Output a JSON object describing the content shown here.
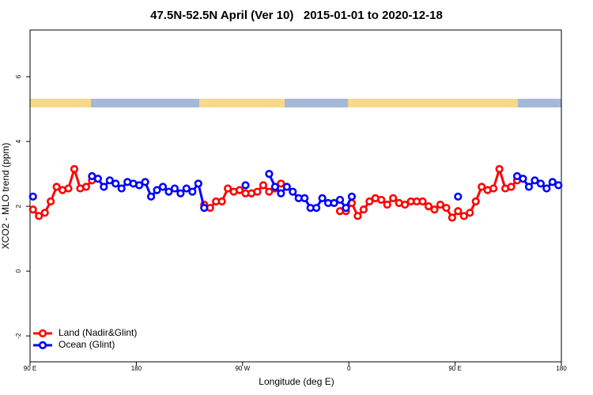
{
  "chart_data": {
    "type": "line",
    "title": "47.5N-52.5N April (Ver 10)   2015-01-01 to 2020-12-18",
    "xlabel": "Longitude (deg E)",
    "ylabel": "XCO2 - MLO trend (ppm)",
    "x": [
      92.5,
      97.5,
      102.5,
      107.5,
      112.5,
      117.5,
      122.5,
      127.5,
      132.5,
      137.5,
      142.5,
      147.5,
      152.5,
      157.5,
      162.5,
      167.5,
      172.5,
      177.5,
      182.5,
      187.5,
      192.5,
      197.5,
      202.5,
      207.5,
      212.5,
      217.5,
      222.5,
      227.5,
      232.5,
      237.5,
      242.5,
      247.5,
      252.5,
      257.5,
      262.5,
      267.5,
      272.5,
      277.5,
      282.5,
      287.5,
      292.5,
      297.5,
      302.5,
      307.5,
      312.5,
      317.5,
      322.5,
      327.5,
      332.5,
      337.5,
      342.5,
      347.5,
      352.5,
      357.5,
      362.5,
      367.5,
      372.5,
      377.5,
      382.5,
      387.5,
      392.5,
      397.5,
      402.5,
      407.5,
      412.5,
      417.5,
      422.5,
      427.5,
      432.5,
      437.5,
      442.5,
      447.5,
      452.5,
      457.5,
      462.5,
      467.5,
      472.5,
      477.5,
      482.5,
      487.5,
      492.5,
      497.5,
      502.5,
      507.5,
      512.5,
      517.5,
      522.5,
      527.5,
      532.5,
      537.5
    ],
    "series": [
      {
        "name": "Land (Nadir&Glint)",
        "color": "#ff0000",
        "values": [
          1.9,
          1.7,
          1.8,
          2.15,
          2.6,
          2.5,
          2.55,
          3.15,
          2.55,
          2.6,
          2.8,
          null,
          null,
          null,
          null,
          null,
          null,
          null,
          null,
          null,
          null,
          null,
          null,
          null,
          null,
          null,
          null,
          null,
          null,
          2.05,
          1.95,
          2.15,
          2.15,
          2.55,
          2.45,
          2.5,
          2.4,
          2.4,
          2.45,
          2.65,
          2.45,
          2.55,
          2.7,
          null,
          null,
          null,
          null,
          null,
          null,
          null,
          null,
          null,
          1.85,
          1.85,
          2.1,
          1.7,
          1.9,
          2.15,
          2.25,
          2.2,
          2.05,
          2.25,
          2.1,
          2.05,
          2.15,
          2.15,
          2.15,
          2.0,
          1.9,
          2.05,
          1.95,
          1.65,
          1.85,
          1.7,
          1.8,
          2.15,
          2.6,
          2.5,
          2.55,
          3.15,
          2.55,
          2.6,
          2.8,
          null,
          null,
          null,
          null,
          null,
          null,
          null
        ]
      },
      {
        "name": "Ocean (Glint)",
        "color": "#0000ff",
        "values": [
          2.3,
          null,
          null,
          null,
          null,
          null,
          null,
          null,
          null,
          null,
          2.93,
          2.85,
          2.6,
          2.8,
          2.7,
          2.55,
          2.75,
          2.7,
          2.65,
          2.75,
          2.3,
          2.5,
          2.6,
          2.45,
          2.55,
          2.4,
          2.55,
          2.45,
          2.7,
          1.95,
          null,
          null,
          null,
          null,
          null,
          null,
          2.65,
          null,
          null,
          null,
          3.0,
          2.6,
          2.4,
          2.6,
          2.45,
          2.25,
          2.25,
          1.95,
          1.95,
          2.25,
          2.1,
          2.1,
          2.2,
          1.95,
          2.3,
          null,
          null,
          null,
          null,
          null,
          null,
          null,
          null,
          null,
          null,
          null,
          null,
          null,
          null,
          null,
          null,
          null,
          2.3,
          null,
          null,
          null,
          null,
          null,
          null,
          null,
          null,
          null,
          2.93,
          2.85,
          2.6,
          2.8,
          2.7,
          2.55,
          2.75,
          2.65
        ]
      }
    ],
    "xlim": [
      90,
      540
    ],
    "xticks": [
      {
        "value": 90,
        "label": "90 E"
      },
      180,
      {
        "value": 270,
        "label": "90 W"
      },
      {
        "value": 360,
        "label": "0"
      },
      {
        "value": 450,
        "label": "90 E"
      },
      {
        "value": 540,
        "label": "180"
      }
    ],
    "ylim": [
      -2.8,
      7.44
    ],
    "yticks": [
      -2,
      0,
      2,
      4,
      6
    ],
    "legend": "bottom-left"
  }
}
